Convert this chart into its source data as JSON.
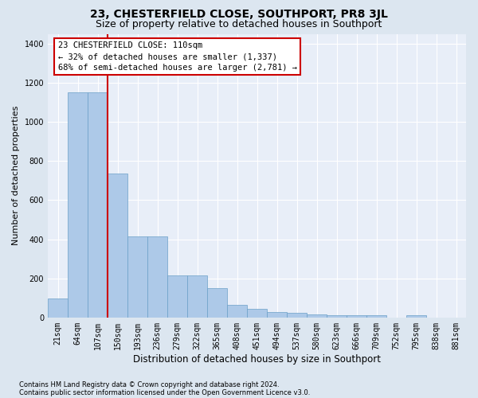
{
  "title": "23, CHESTERFIELD CLOSE, SOUTHPORT, PR8 3JL",
  "subtitle": "Size of property relative to detached houses in Southport",
  "xlabel": "Distribution of detached houses by size in Southport",
  "ylabel": "Number of detached properties",
  "categories": [
    "21sqm",
    "64sqm",
    "107sqm",
    "150sqm",
    "193sqm",
    "236sqm",
    "279sqm",
    "322sqm",
    "365sqm",
    "408sqm",
    "451sqm",
    "494sqm",
    "537sqm",
    "580sqm",
    "623sqm",
    "666sqm",
    "709sqm",
    "752sqm",
    "795sqm",
    "838sqm",
    "881sqm"
  ],
  "values": [
    95,
    1150,
    1150,
    735,
    415,
    415,
    215,
    215,
    150,
    65,
    45,
    28,
    25,
    15,
    13,
    12,
    12,
    0,
    12,
    0,
    0
  ],
  "bar_color": "#adc9e8",
  "bar_edge_color": "#6a9fc8",
  "highlight_color": "#cc0000",
  "annotation_text": "23 CHESTERFIELD CLOSE: 110sqm\n← 32% of detached houses are smaller (1,337)\n68% of semi-detached houses are larger (2,781) →",
  "annotation_box_facecolor": "#ffffff",
  "annotation_box_edgecolor": "#cc0000",
  "ylim_max": 1450,
  "yticks": [
    0,
    200,
    400,
    600,
    800,
    1000,
    1200,
    1400
  ],
  "footer1": "Contains HM Land Registry data © Crown copyright and database right 2024.",
  "footer2": "Contains public sector information licensed under the Open Government Licence v3.0.",
  "fig_bg": "#dce6f0",
  "axes_bg": "#e8eef8",
  "title_fontsize": 10,
  "subtitle_fontsize": 9,
  "xlabel_fontsize": 8.5,
  "ylabel_fontsize": 8,
  "tick_fontsize": 7,
  "footer_fontsize": 6,
  "annot_fontsize": 7.5
}
